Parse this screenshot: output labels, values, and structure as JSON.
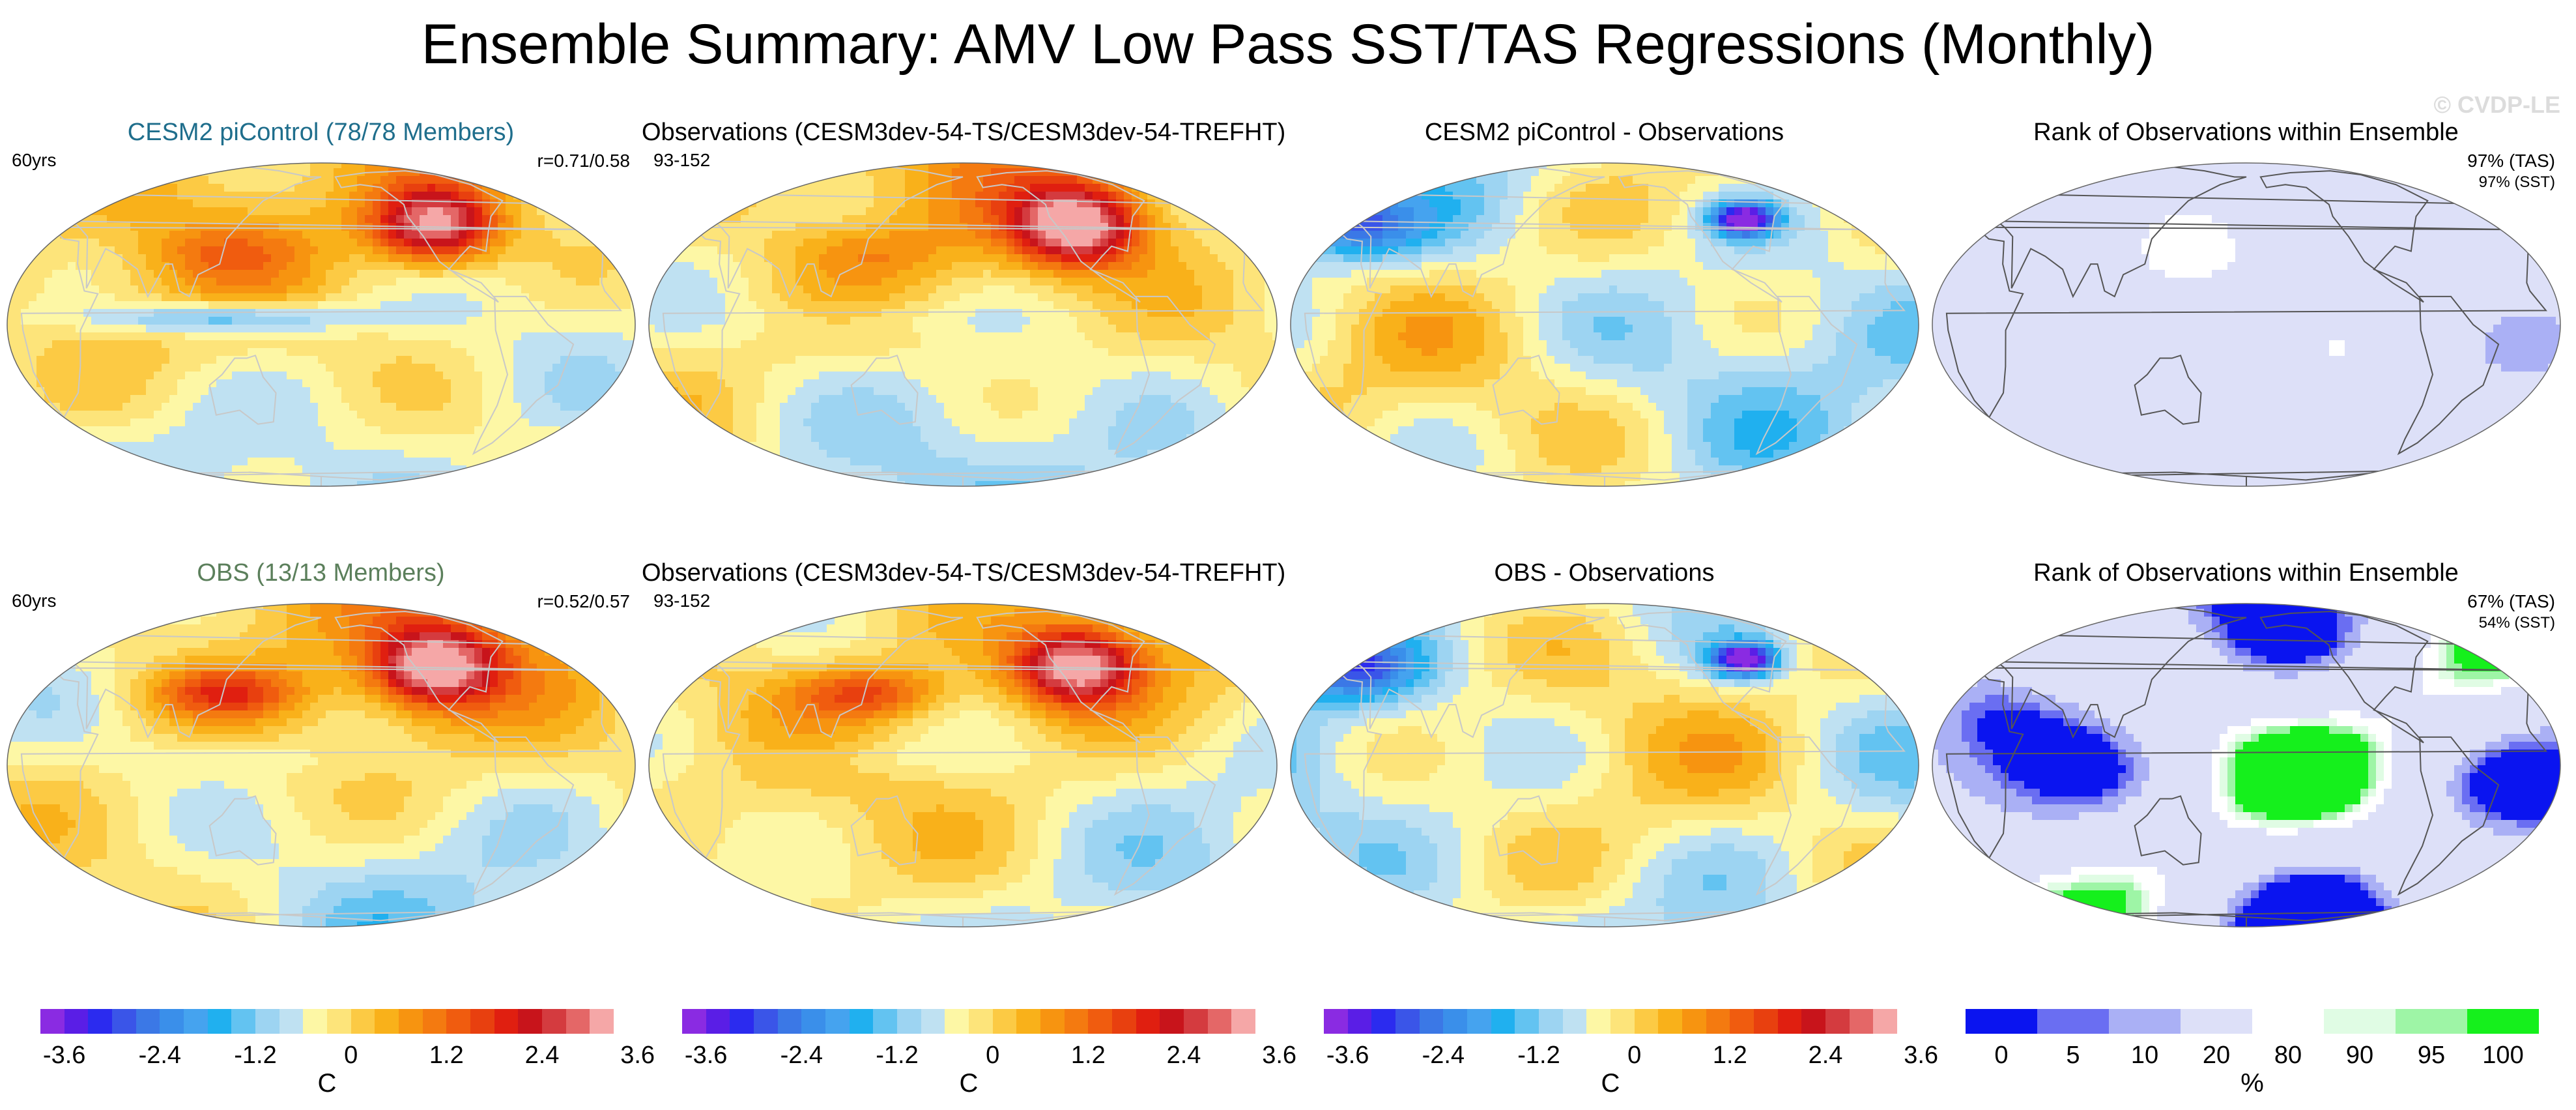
{
  "title": "Ensemble Summary: AMV Low Pass SST/TAS Regressions (Monthly)",
  "watermark": "© CVDP-LE",
  "colors": {
    "model_title": "#1f6e8c",
    "obs_model_title": "#5b7f5b",
    "coast": "#c8c8c8"
  },
  "panels": [
    {
      "title": "CESM2 piControl (78/78 Members)",
      "left": "60yrs",
      "right": "r=0.71/0.58",
      "right_sub": ""
    },
    {
      "title": "Observations (CESM3dev-54-TS/CESM3dev-54-TREFHT)",
      "left": "93-152",
      "right": "",
      "right_sub": ""
    },
    {
      "title": "CESM2 piControl - Observations",
      "left": "",
      "right": "",
      "right_sub": ""
    },
    {
      "title": "Rank of Observations within Ensemble",
      "left": "",
      "right": "97% (TAS)",
      "right_sub": "97% (SST)"
    },
    {
      "title": "OBS (13/13 Members)",
      "left": "60yrs",
      "right": "r=0.52/0.57",
      "right_sub": ""
    },
    {
      "title": "Observations (CESM3dev-54-TS/CESM3dev-54-TREFHT)",
      "left": "93-152",
      "right": "",
      "right_sub": ""
    },
    {
      "title": "OBS - Observations",
      "left": "",
      "right": "",
      "right_sub": ""
    },
    {
      "title": "Rank of Observations within Ensemble",
      "left": "",
      "right": "67% (TAS)",
      "right_sub": "54% (SST)"
    }
  ],
  "chart_data": [
    {
      "type": "heatmap",
      "name": "regression colorbar",
      "levels": [
        -3.6,
        -3.3,
        -3.0,
        -2.7,
        -2.4,
        -2.1,
        -1.8,
        -1.5,
        -1.2,
        -0.9,
        -0.6,
        -0.3,
        0,
        0.3,
        0.6,
        0.9,
        1.2,
        1.5,
        1.8,
        2.1,
        2.4,
        2.7,
        3.0,
        3.3,
        3.6
      ],
      "tick_labels": [
        "-3.6",
        "-2.4",
        "-1.2",
        "0",
        "1.2",
        "2.4",
        "3.6"
      ],
      "unit": "C",
      "colors": [
        "#8a2be2",
        "#5a1ee6",
        "#2b2bef",
        "#3a55e8",
        "#3b78e6",
        "#3a8fea",
        "#45a3ef",
        "#20b0ef",
        "#63c3f1",
        "#9dd4f2",
        "#bfe1f2",
        "#fdf7a5",
        "#fde47a",
        "#fcca44",
        "#f9b11a",
        "#f79410",
        "#f47a10",
        "#f05c0f",
        "#e8400f",
        "#e01f10",
        "#c8141b",
        "#d43b3f",
        "#e46767",
        "#f5a7a7"
      ]
    },
    {
      "type": "heatmap",
      "name": "rank colorbar",
      "levels": [
        0,
        5,
        10,
        20,
        80,
        90,
        95,
        100
      ],
      "tick_labels": [
        "0",
        "5",
        "10",
        "20",
        "80",
        "90",
        "95",
        "100"
      ],
      "unit": "%",
      "colors": [
        "#0a14f0",
        "#6a6ef2",
        "#aab0f5",
        "#dde0f8",
        "#ffffff",
        "#e0fce4",
        "#9ef5a6",
        "#15f01c"
      ]
    }
  ]
}
